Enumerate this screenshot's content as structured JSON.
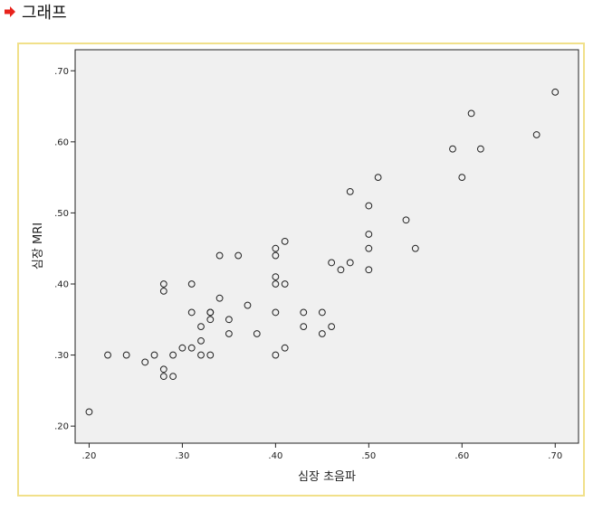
{
  "header": {
    "title": "그래프",
    "arrow_icon": "arrow-right-icon",
    "arrow_color": "#e8231c"
  },
  "frame_color": "#f1e08a",
  "plot_background": "#f0f0f0",
  "chart_data": {
    "type": "scatter",
    "title": "",
    "xlabel": "심장 초음파",
    "ylabel": "심장 MRI",
    "xlim": [
      0.185,
      0.725
    ],
    "ylim": [
      0.176,
      0.7296
    ],
    "xticks": [
      0.2,
      0.3,
      0.4,
      0.5,
      0.6,
      0.7
    ],
    "xticklabels": [
      ".20",
      ".30",
      ".40",
      ".50",
      ".60",
      ".70"
    ],
    "yticks": [
      0.2,
      0.3,
      0.4,
      0.5,
      0.6,
      0.7
    ],
    "yticklabels": [
      ".20",
      ".30",
      ".40",
      ".50",
      ".60",
      ".70"
    ],
    "grid": false,
    "marker": "open-circle",
    "points": [
      [
        0.2,
        0.22
      ],
      [
        0.22,
        0.3
      ],
      [
        0.24,
        0.3
      ],
      [
        0.26,
        0.29
      ],
      [
        0.27,
        0.3
      ],
      [
        0.28,
        0.28
      ],
      [
        0.28,
        0.27
      ],
      [
        0.28,
        0.4
      ],
      [
        0.28,
        0.39
      ],
      [
        0.29,
        0.3
      ],
      [
        0.29,
        0.27
      ],
      [
        0.3,
        0.31
      ],
      [
        0.31,
        0.31
      ],
      [
        0.31,
        0.36
      ],
      [
        0.31,
        0.4
      ],
      [
        0.32,
        0.34
      ],
      [
        0.32,
        0.32
      ],
      [
        0.32,
        0.3
      ],
      [
        0.33,
        0.36
      ],
      [
        0.33,
        0.36
      ],
      [
        0.33,
        0.35
      ],
      [
        0.33,
        0.3
      ],
      [
        0.34,
        0.38
      ],
      [
        0.34,
        0.44
      ],
      [
        0.35,
        0.35
      ],
      [
        0.35,
        0.33
      ],
      [
        0.36,
        0.44
      ],
      [
        0.37,
        0.37
      ],
      [
        0.38,
        0.33
      ],
      [
        0.4,
        0.45
      ],
      [
        0.4,
        0.44
      ],
      [
        0.4,
        0.41
      ],
      [
        0.4,
        0.4
      ],
      [
        0.4,
        0.36
      ],
      [
        0.4,
        0.3
      ],
      [
        0.41,
        0.46
      ],
      [
        0.41,
        0.4
      ],
      [
        0.41,
        0.31
      ],
      [
        0.43,
        0.36
      ],
      [
        0.43,
        0.34
      ],
      [
        0.45,
        0.36
      ],
      [
        0.45,
        0.33
      ],
      [
        0.46,
        0.43
      ],
      [
        0.46,
        0.34
      ],
      [
        0.47,
        0.42
      ],
      [
        0.48,
        0.53
      ],
      [
        0.48,
        0.43
      ],
      [
        0.5,
        0.51
      ],
      [
        0.5,
        0.47
      ],
      [
        0.5,
        0.45
      ],
      [
        0.5,
        0.42
      ],
      [
        0.51,
        0.55
      ],
      [
        0.54,
        0.49
      ],
      [
        0.55,
        0.45
      ],
      [
        0.59,
        0.59
      ],
      [
        0.6,
        0.55
      ],
      [
        0.61,
        0.64
      ],
      [
        0.62,
        0.59
      ],
      [
        0.68,
        0.61
      ],
      [
        0.7,
        0.67
      ]
    ]
  }
}
